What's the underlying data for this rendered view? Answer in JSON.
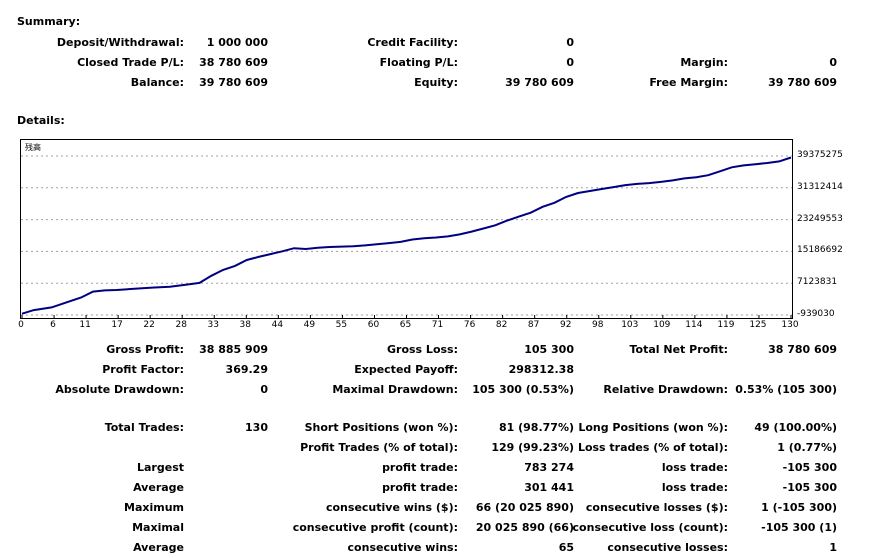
{
  "summary": {
    "title": "Summary:",
    "deposit_label": "Deposit/Withdrawal:",
    "deposit_value": "1 000 000",
    "closed_pl_label": "Closed Trade P/L:",
    "closed_pl_value": "38 780 609",
    "balance_label": "Balance:",
    "balance_value": "39 780 609",
    "credit_label": "Credit Facility:",
    "credit_value": "0",
    "floating_label": "Floating P/L:",
    "floating_value": "0",
    "equity_label": "Equity:",
    "equity_value": "39 780 609",
    "margin_label": "Margin:",
    "margin_value": "0",
    "free_margin_label": "Free Margin:",
    "free_margin_value": "39 780 609"
  },
  "details": {
    "title": "Details:",
    "chart_tag": "残高"
  },
  "chart_data": {
    "type": "line",
    "x_ticks": [
      "0",
      "6",
      "11",
      "17",
      "22",
      "28",
      "33",
      "38",
      "44",
      "49",
      "55",
      "60",
      "65",
      "71",
      "76",
      "82",
      "87",
      "92",
      "98",
      "103",
      "109",
      "114",
      "119",
      "125",
      "130"
    ],
    "y_ticks": [
      "39375275",
      "31312414",
      "23249553",
      "15186692",
      "7123831",
      "-939030"
    ],
    "ylim": [
      -939030,
      39375275
    ],
    "xlim": [
      0,
      130
    ],
    "grid": true,
    "series": [
      {
        "color": "#000080",
        "x": [
          0,
          2,
          5,
          8,
          10,
          12,
          14,
          16,
          19,
          22,
          25,
          28,
          30,
          32,
          34,
          36,
          38,
          40,
          42,
          44,
          46,
          48,
          50,
          52,
          54,
          56,
          58,
          60,
          62,
          64,
          66,
          68,
          70,
          72,
          74,
          76,
          78,
          80,
          82,
          84,
          86,
          88,
          90,
          92,
          94,
          96,
          98,
          100,
          102,
          104,
          106,
          108,
          110,
          112,
          114,
          116,
          118,
          120,
          122,
          124,
          126,
          128,
          130
        ],
        "y": [
          -600000,
          300000,
          1000000,
          2500000,
          3500000,
          5000000,
          5300000,
          5400000,
          5700000,
          6000000,
          6200000,
          6800000,
          7200000,
          9000000,
          10500000,
          11500000,
          13000000,
          13800000,
          14500000,
          15200000,
          16000000,
          15800000,
          16100000,
          16300000,
          16400000,
          16500000,
          16700000,
          17000000,
          17300000,
          17600000,
          18200000,
          18500000,
          18700000,
          19000000,
          19500000,
          20200000,
          21000000,
          21800000,
          23000000,
          24000000,
          25000000,
          26500000,
          27500000,
          29000000,
          30000000,
          30500000,
          31000000,
          31500000,
          32000000,
          32300000,
          32500000,
          32800000,
          33200000,
          33700000,
          34000000,
          34500000,
          35500000,
          36500000,
          37000000,
          37300000,
          37600000,
          38000000,
          39000000
        ]
      }
    ]
  },
  "stats": {
    "gross_profit_label": "Gross Profit:",
    "gross_profit_value": "38 885 909",
    "gross_loss_label": "Gross Loss:",
    "gross_loss_value": "105 300",
    "net_profit_label": "Total Net Profit:",
    "net_profit_value": "38 780 609",
    "profit_factor_label": "Profit Factor:",
    "profit_factor_value": "369.29",
    "expected_payoff_label": "Expected Payoff:",
    "expected_payoff_value": "298312.38",
    "abs_dd_label": "Absolute Drawdown:",
    "abs_dd_value": "0",
    "max_dd_label": "Maximal Drawdown:",
    "max_dd_value": "105 300 (0.53%)",
    "rel_dd_label": "Relative Drawdown:",
    "rel_dd_value": "0.53% (105 300)",
    "total_trades_label": "Total Trades:",
    "total_trades_value": "130",
    "short_pos_label": "Short Positions (won %):",
    "short_pos_value": "81 (98.77%)",
    "long_pos_label": "Long Positions (won %):",
    "long_pos_value": "49 (100.00%)",
    "profit_trades_label": "Profit Trades (% of total):",
    "profit_trades_value": "129 (99.23%)",
    "loss_trades_label": "Loss trades (% of total):",
    "loss_trades_value": "1 (0.77%)",
    "largest_label": "Largest",
    "largest_profit_label": "profit trade:",
    "largest_profit_value": "783 274",
    "largest_loss_label": "loss trade:",
    "largest_loss_value": "-105 300",
    "average_label": "Average",
    "average_profit_label": "profit trade:",
    "average_profit_value": "301 441",
    "average_loss_label": "loss trade:",
    "average_loss_value": "-105 300",
    "maximum_label": "Maximum",
    "max_cons_wins_label": "consecutive wins ($):",
    "max_cons_wins_value": "66 (20 025 890)",
    "max_cons_losses_label": "consecutive losses ($):",
    "max_cons_losses_value": "1 (-105 300)",
    "maximal_label": "Maximal",
    "maximal_cons_profit_label": "consecutive profit (count):",
    "maximal_cons_profit_value": "20 025 890 (66)",
    "maximal_cons_loss_label": "consecutive loss (count):",
    "maximal_cons_loss_value": "-105 300 (1)",
    "average2_label": "Average",
    "avg_cons_wins_label": "consecutive wins:",
    "avg_cons_wins_value": "65",
    "avg_cons_losses_label": "consecutive losses:",
    "avg_cons_losses_value": "1"
  }
}
